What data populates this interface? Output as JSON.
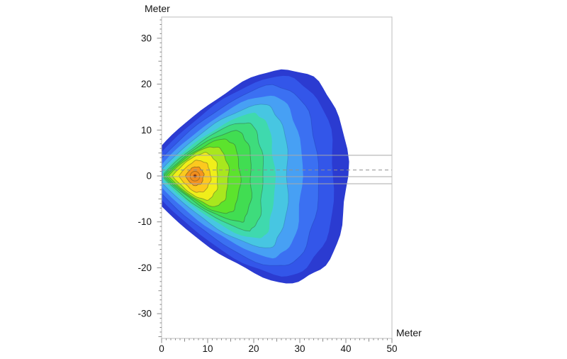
{
  "chart_data": {
    "type": "heatmap",
    "subtype": "contour-level-map",
    "title": "",
    "xlabel": "Meter",
    "ylabel": "Meter",
    "x_range": [
      0,
      50
    ],
    "y_range": [
      -35.4,
      34.6
    ],
    "grid": false,
    "legend": "none",
    "x_major_ticks": [
      0,
      10,
      20,
      30,
      40,
      50
    ],
    "x_tick_labels": [
      "0",
      "10",
      "20",
      "30",
      "40",
      "50"
    ],
    "y_major_ticks": [
      30,
      20,
      10,
      0,
      -10,
      -20,
      -30
    ],
    "y_tick_labels": [
      "30",
      "20",
      "10",
      "0",
      "-10",
      "-20",
      "-30"
    ],
    "minor_tick_step": 1,
    "medium_tick_step": 5,
    "source_point": {
      "x": 7.25,
      "y": 0.0
    },
    "reference_lines": [
      {
        "y": 4.5,
        "style": "solid"
      },
      {
        "y": 1.3,
        "style": "dashed"
      },
      {
        "y": -0.15,
        "style": "solid"
      },
      {
        "y": -1.7,
        "style": "solid"
      }
    ],
    "bands": [
      {
        "level_index": 1,
        "color": "#2b3bd1",
        "l": 0,
        "hl": 6.6,
        "r": 40.3,
        "xt": 26,
        "ht": 23.3,
        "xb": 27,
        "hb": 23.3,
        "amp": 0.55,
        "stroke": null
      },
      {
        "level_index": 2,
        "color": "#3356e9",
        "l": 0,
        "hl": 5.2,
        "r": 37.5,
        "xt": 25,
        "ht": 21.7,
        "xb": 26,
        "hb": 21.8,
        "amp": 0.5,
        "stroke": null
      },
      {
        "level_index": 3,
        "color": "#3b70f2",
        "l": 0,
        "hl": 3.8,
        "r": 34.0,
        "xt": 24,
        "ht": 19.7,
        "xb": 25,
        "hb": 19.8,
        "amp": 0.45,
        "stroke": "rgba(25,55,160,0.35)"
      },
      {
        "level_index": 4,
        "color": "#47a0f4",
        "l": 0.1,
        "hl": 2.6,
        "r": 30.5,
        "xt": 23,
        "ht": 17.6,
        "xb": 24,
        "hb": 17.7,
        "amp": 0.42,
        "stroke": null
      },
      {
        "level_index": 5,
        "color": "#47c6e2",
        "l": 0.2,
        "hl": 1.6,
        "r": 27.5,
        "xt": 21.5,
        "ht": 15.6,
        "xb": 22.5,
        "hb": 15.7,
        "amp": 0.4,
        "stroke": "rgba(30,90,130,0.3)"
      },
      {
        "level_index": 6,
        "color": "#3fd9ae",
        "l": 0.35,
        "hl": 0.9,
        "r": 24.5,
        "xt": 20,
        "ht": 13.6,
        "xb": 21,
        "hb": 13.7,
        "amp": 0.38,
        "stroke": null
      },
      {
        "level_index": 7,
        "color": "#3edc7c",
        "l": 0.5,
        "hl": 0.5,
        "r": 22.0,
        "xt": 18,
        "ht": 11.7,
        "xb": 19,
        "hb": 11.8,
        "amp": 0.36,
        "stroke": "rgba(50,85,58,0.45)"
      },
      {
        "level_index": 8,
        "color": "#41dd52",
        "l": 0.7,
        "hl": 0.3,
        "r": 19.5,
        "xt": 16,
        "ht": 9.8,
        "xb": 17,
        "hb": 10.0,
        "amp": 0.34,
        "stroke": "rgba(50,85,58,0.5)"
      },
      {
        "level_index": 9,
        "color": "#5ce32d",
        "l": 1.1,
        "hl": 0.2,
        "r": 17.0,
        "xt": 13.5,
        "ht": 8.0,
        "xb": 14,
        "hb": 8.2,
        "amp": 0.3,
        "stroke": "rgba(50,85,58,0.5)"
      },
      {
        "level_index": 10,
        "color": "#a9e71e",
        "l": 1.6,
        "hl": 0.15,
        "r": 14.5,
        "xt": 11,
        "ht": 6.4,
        "xb": 11.5,
        "hb": 6.6,
        "amp": 0.28,
        "stroke": "rgba(60,85,50,0.5)"
      },
      {
        "level_index": 11,
        "color": "#f0ee1a",
        "l": 2.4,
        "hl": 0.1,
        "r": 12.2,
        "xt": 9.2,
        "ht": 5.0,
        "xb": 9.5,
        "hb": 5.2,
        "amp": 0.26,
        "stroke": "rgba(70,85,45,0.5)"
      },
      {
        "level_index": 12,
        "color": "#fcc91e",
        "l": 3.8,
        "hl": 0.1,
        "r": 10.6,
        "xt": 7.8,
        "ht": 3.4,
        "xb": 7.8,
        "hb": 3.6,
        "amp": 0.22,
        "stroke": "rgba(85,80,40,0.5)"
      },
      {
        "level_index": 13,
        "color": "#f5941f",
        "l": 5.2,
        "hl": 0.1,
        "r": 9.1,
        "xt": 7.2,
        "ht": 2.0,
        "xb": 7.2,
        "hb": 2.1,
        "amp": 0.18,
        "stroke": "rgba(90,75,30,0.6)"
      }
    ],
    "hotspot": {
      "ring": {
        "cx": 7.25,
        "cy": -0.05,
        "r": 1.05,
        "fill": "#f28e1d",
        "stroke": "rgba(90,75,30,0.5)"
      },
      "dot": {
        "cx": 7.25,
        "cy": 0.0,
        "r": 0.38,
        "fill": "#a3490f"
      },
      "core": {
        "cx": 7.25,
        "cy": 0.0,
        "r": 0.18,
        "fill": "#64280a"
      }
    },
    "colors": {
      "frame": "#bdbdbd",
      "tick": "#8a8a8a",
      "label": "#141414",
      "ref_solid": "#a8a8a8",
      "ref_dashed": "#8f8f8f"
    }
  }
}
